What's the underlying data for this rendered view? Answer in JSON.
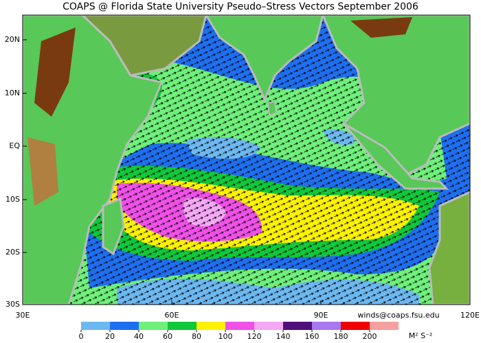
{
  "header": {
    "title": "COAPS @ Florida State University Pseudo–Stress Vectors September 2006"
  },
  "axes": {
    "lat_labels": [
      "20N",
      "10N",
      "EQ",
      "10S",
      "20S",
      "30S"
    ],
    "lon_labels": [
      "30E",
      "60E",
      "90E",
      "120E"
    ]
  },
  "footer": {
    "contact": "winds@coaps.fsu.edu"
  },
  "colorbar": {
    "ticks": [
      0,
      20,
      40,
      60,
      80,
      100,
      120,
      140,
      160,
      180,
      200
    ],
    "colors": [
      "#6cb8f0",
      "#1e6ff0",
      "#6ef07a",
      "#10c83a",
      "#fff200",
      "#f050e8",
      "#f4a8f4",
      "#50107a",
      "#a878f0",
      "#f00000",
      "#f4a0a0"
    ],
    "unit": "M² S⁻²"
  }
}
